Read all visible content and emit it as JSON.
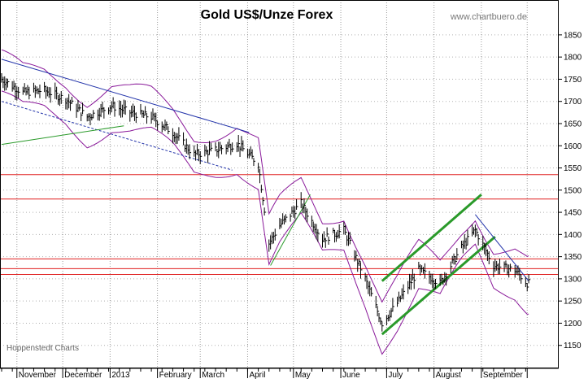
{
  "chart_data": {
    "type": "line",
    "title": "Gold US$/Unze Forex",
    "source_label": "www.chartbuero.de",
    "footer_label": "Hoppenstedt Charts",
    "ylim": [
      1100,
      1860
    ],
    "yticks": [
      1150,
      1200,
      1250,
      1300,
      1350,
      1400,
      1450,
      1500,
      1550,
      1600,
      1650,
      1700,
      1750,
      1800,
      1850
    ],
    "xlabel": "",
    "ylabel": "",
    "grid": true,
    "months": [
      "November",
      "December",
      "2013",
      "February",
      "March",
      "April",
      "May",
      "June",
      "July",
      "August",
      "September"
    ],
    "x": [
      "2012-10-22",
      "2012-11-05",
      "2012-11-19",
      "2012-12-03",
      "2012-12-17",
      "2013-01-02",
      "2013-01-14",
      "2013-01-28",
      "2013-02-11",
      "2013-02-25",
      "2013-03-11",
      "2013-03-25",
      "2013-04-08",
      "2013-04-15",
      "2013-04-22",
      "2013-05-06",
      "2013-05-20",
      "2013-06-03",
      "2013-06-17",
      "2013-06-28",
      "2013-07-08",
      "2013-07-22",
      "2013-08-05",
      "2013-08-19",
      "2013-08-28",
      "2013-09-09",
      "2013-09-23",
      "2013-10-01"
    ],
    "series": [
      {
        "values": [
          1750,
          1720,
          1725,
          1705,
          1665,
          1690,
          1675,
          1665,
          1630,
          1580,
          1590,
          1605,
          1560,
          1380,
          1420,
          1470,
          1390,
          1410,
          1300,
          1200,
          1245,
          1320,
          1290,
          1370,
          1410,
          1330,
          1320,
          1290
        ]
      }
    ],
    "horizontal_lines": [
      1535,
      1480,
      1345,
      1323,
      1310
    ],
    "colors": {
      "price": "#000000",
      "bollinger": "#8a1a9a",
      "resistance": "#e02020",
      "channel": "#2a9a2a",
      "trend": "#2233aa"
    }
  }
}
